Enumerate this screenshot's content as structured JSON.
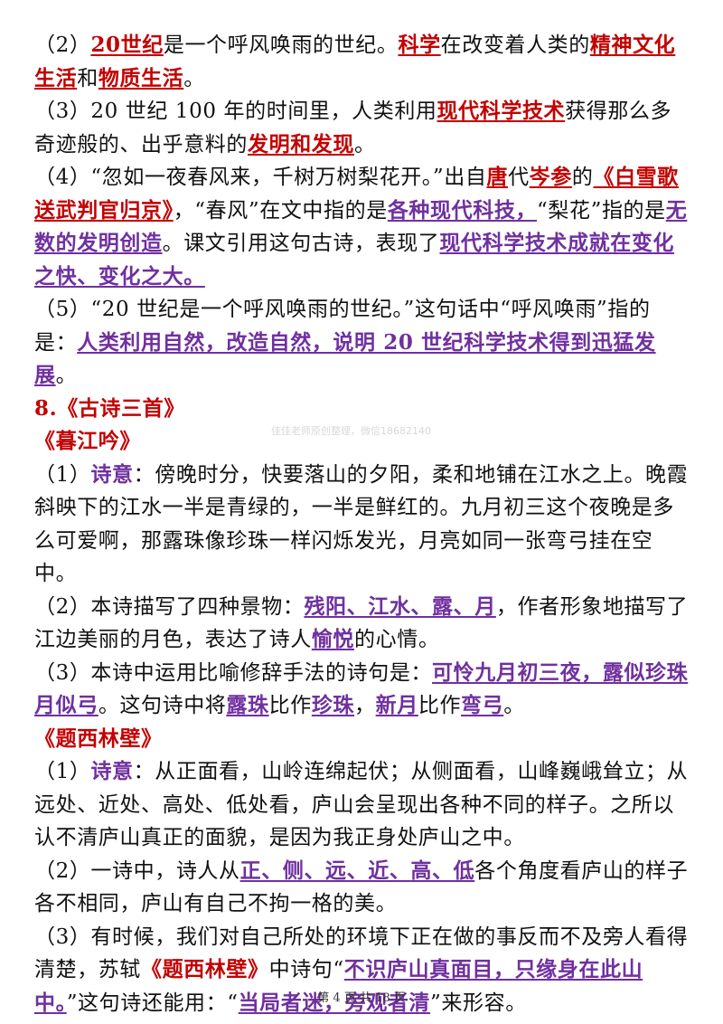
{
  "watermark": "佳佳老师原创整理，微信18682140",
  "footer": "第 4 页 共 18 页",
  "items": {
    "p2": [
      "（2）",
      "20世纪",
      "是一个呼风唤雨的世纪。",
      "科学",
      "在改变着人类的",
      "精神文化生活",
      "和",
      "物质生活",
      "。"
    ],
    "p3": [
      "（3）20 世纪 100 年的时间里，人类利用",
      "现代科学技术",
      "获得那么多奇迹般的、出乎意料的",
      "发明和发现",
      "。"
    ],
    "p4": [
      "（4）“忽如一夜春风来，千树万树梨花开。”出自",
      "唐",
      "代",
      "岑参",
      "的",
      "《白雪歌送武判官归京》",
      "，“春风”在文中指的是",
      "各种现代科技，",
      "“梨花”指的是",
      "无数的发明创造",
      "。课文引用这句古诗，表现了",
      "现代科学技术成就在变化之快、变化之大。"
    ],
    "p5": [
      "（5）“20 世纪是一个呼风唤雨的世纪。”这句话中“呼风唤雨”指的是：",
      "人类利用自然，改造自然，说明 20 世纪科学技术得到迅猛发展",
      "。"
    ],
    "sec8": "8.《古诗三首》",
    "poem1_title": "《暮江吟》",
    "m1": [
      "（1）",
      "诗意",
      "：傍晚时分，快要落山的夕阳，柔和地铺在江水之上。晚霞斜映下的江水一半是青绿的，一半是鲜红的。九月初三这个夜晚是多么可爱啊，那露珠像珍珠一样闪烁发光，月亮如同一张弯弓挂在空中。"
    ],
    "m2": [
      "（2）本诗描写了四种景物：",
      "残阳、江水、露、月",
      "，作者形象地描写了江边美丽的月色，表达了诗人",
      "愉悦",
      "的心情。"
    ],
    "m3": [
      "（3）本诗中运用比喻修辞手法的诗句是：",
      "可怜九月初三夜，露似珍珠月似弓",
      "。这句诗中将",
      "露珠",
      "比作",
      "珍珠",
      "，",
      "新月",
      "比作",
      "弯弓",
      "。"
    ],
    "poem2_title": "《题西林壁》",
    "t1": [
      "（1）",
      "诗意",
      "：从正面看，山岭连绵起伏；从侧面看，山峰巍峨耸立；从远处、近处、高处、低处看，庐山会呈现出各种不同的样子。之所以认不清庐山真正的面貌，是因为我正身处庐山之中。"
    ],
    "t2": [
      "（2）一诗中，诗人从",
      "正、侧、远、近、高、低",
      "各个角度看庐山的样子各不相同，庐山有自己不拘一格的美。"
    ],
    "t3": [
      "（3）有时候，我们对自己所处的环境下正在做的事反而不及旁人看得清楚，苏轼",
      "《题西林壁》",
      "中诗句“",
      "不识庐山真面目，只缘身在此山中。",
      "”这句诗还能用：“",
      "当局者迷，旁观者清",
      "”来形容。"
    ]
  }
}
